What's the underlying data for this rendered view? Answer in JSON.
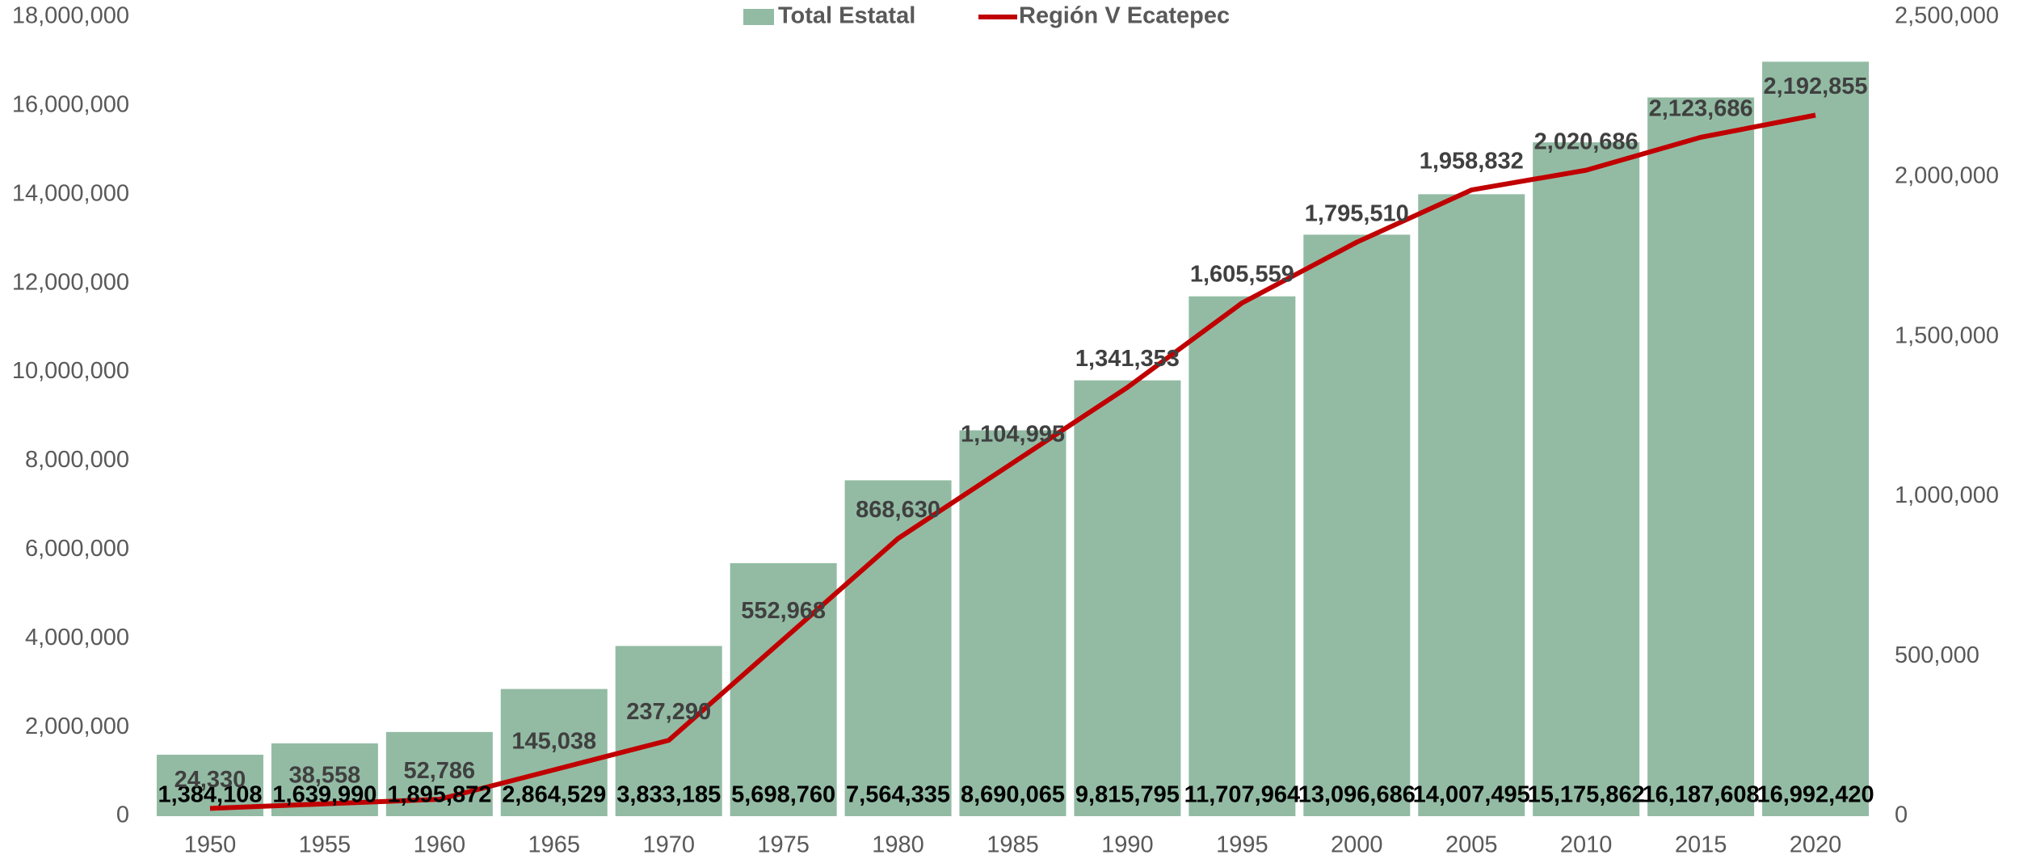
{
  "chart_data": {
    "type": "bar",
    "categories": [
      "1950",
      "1955",
      "1960",
      "1965",
      "1970",
      "1975",
      "1980",
      "1985",
      "1990",
      "1995",
      "2000",
      "2005",
      "2010",
      "2015",
      "2020"
    ],
    "series": [
      {
        "name": "Total Estatal",
        "color": "#93bba4",
        "values": [
          1384108,
          1639990,
          1895872,
          2864529,
          3833185,
          5698760,
          7564335,
          8690065,
          9815795,
          11707964,
          13096686,
          14007495,
          15175862,
          16187608,
          16992420
        ],
        "value_labels": [
          "1,384,108",
          "1,639,990",
          "1,895,872",
          "2,864,529",
          "3,833,185",
          "5,698,760",
          "7,564,335",
          "8,690,065",
          "9,815,795",
          "11,707,964",
          "13,096,686",
          "14,007,495",
          "15,175,862",
          "16,187,608",
          "16,992,420"
        ]
      },
      {
        "name": "Región V Ecatepec",
        "color": "#c00000",
        "type": "line",
        "axis": "y2",
        "values": [
          24330,
          38558,
          52786,
          145038,
          237290,
          552968,
          868630,
          1104995,
          1341353,
          1605559,
          1795510,
          1958832,
          2020686,
          2123686,
          2192855
        ],
        "value_labels": [
          "24,330",
          "38,558",
          "52,786",
          "145,038",
          "237,290",
          "552,968",
          "868,630",
          "1,104,995",
          "1,341,353",
          "1,605,559",
          "1,795,510",
          "1,958,832",
          "2,020,686",
          "2,123,686",
          "2,192,855"
        ]
      }
    ],
    "ylim": [
      0,
      18000000
    ],
    "yticks": [
      0,
      {
        "value": 2000000,
        "label": "2,000,000"
      },
      {
        "value": 4000000,
        "label": "4,000,000"
      },
      {
        "value": 6000000,
        "label": "6,000,000"
      },
      {
        "value": 8000000,
        "label": "8,000,000"
      },
      {
        "value": 10000000,
        "label": "10,000,000"
      },
      {
        "value": 12000000,
        "label": "12,000,000"
      },
      {
        "value": 14000000,
        "label": "14,000,000"
      },
      {
        "value": 16000000,
        "label": "16,000,000"
      },
      {
        "value": 18000000,
        "label": "18,000,000"
      }
    ],
    "y2lim": [
      0,
      2500000
    ],
    "y2ticks": [
      0,
      {
        "value": 500000,
        "label": "500,000"
      },
      {
        "value": 1000000,
        "label": "1,000,000"
      },
      {
        "value": 1500000,
        "label": "1,500,000"
      },
      {
        "value": 2000000,
        "label": "2,000,000"
      },
      {
        "value": 2500000,
        "label": "2,500,000"
      }
    ],
    "legend": "top",
    "grid": false
  }
}
